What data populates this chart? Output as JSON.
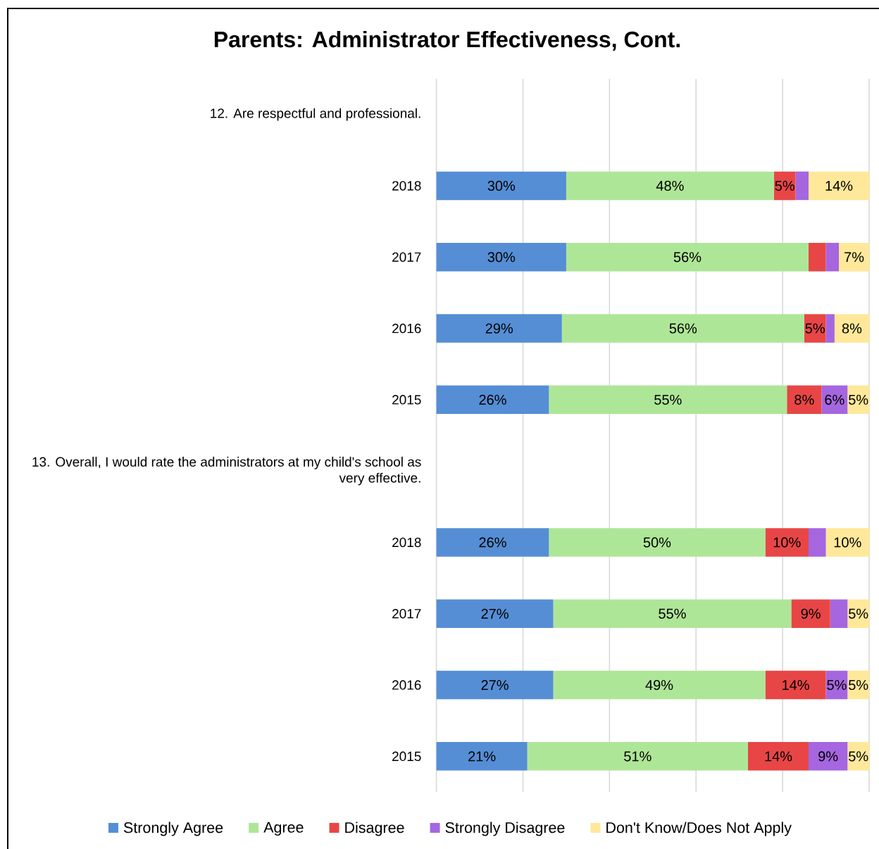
{
  "chart_data": {
    "type": "bar",
    "orientation": "horizontal",
    "stacked": true,
    "title": "Parents: Administrator Effectiveness, Cont.",
    "categories": [
      "12. Are respectful and professional.",
      "2018",
      "2017",
      "2016",
      "2015",
      "13. Overall, I would rate the administrators at my child's school as very effective.",
      "2018",
      "2017",
      "2016",
      "2015"
    ],
    "series": [
      {
        "name": "Strongly Agree",
        "color": "#558ed5",
        "values": [
          null,
          30,
          30,
          29,
          26,
          null,
          26,
          27,
          27,
          21
        ],
        "value_labels": [
          null,
          "30%",
          "30%",
          "29%",
          "26%",
          null,
          "26%",
          "27%",
          "27%",
          "21%"
        ]
      },
      {
        "name": "Agree",
        "color": "#aee698",
        "values": [
          null,
          48,
          56,
          56,
          55,
          null,
          50,
          55,
          49,
          51
        ],
        "value_labels": [
          null,
          "48%",
          "56%",
          "56%",
          "55%",
          null,
          "50%",
          "55%",
          "49%",
          "51%"
        ]
      },
      {
        "name": "Disagree",
        "color": "#e84646",
        "values": [
          null,
          5,
          4,
          5,
          8,
          null,
          10,
          9,
          14,
          14
        ],
        "value_labels": [
          null,
          "5%",
          null,
          "5%",
          "8%",
          null,
          "10%",
          "9%",
          "14%",
          "14%"
        ]
      },
      {
        "name": "Strongly Disagree",
        "color": "#a566e0",
        "values": [
          null,
          3,
          3,
          2,
          6,
          null,
          4,
          4,
          5,
          9
        ],
        "value_labels": [
          null,
          null,
          null,
          null,
          "6%",
          null,
          null,
          null,
          "5%",
          "9%"
        ]
      },
      {
        "name": "Don't Know/Does Not Apply",
        "color": "#ffe899",
        "values": [
          null,
          14,
          7,
          8,
          5,
          null,
          10,
          5,
          5,
          5
        ],
        "value_labels": [
          null,
          "14%",
          "7%",
          "8%",
          "5%",
          null,
          "10%",
          "5%",
          "5%",
          "5%"
        ]
      }
    ],
    "xlim": [
      0,
      100
    ],
    "xticks": [
      {
        "value": 0,
        "label": null
      },
      {
        "value": 20,
        "label": null
      },
      {
        "value": 40,
        "label": null
      },
      {
        "value": 60,
        "label": null
      },
      {
        "value": 80,
        "label": null
      },
      {
        "value": 100,
        "label": null
      }
    ],
    "grid": "x",
    "legend": "bottom",
    "tick_labels": "y"
  }
}
